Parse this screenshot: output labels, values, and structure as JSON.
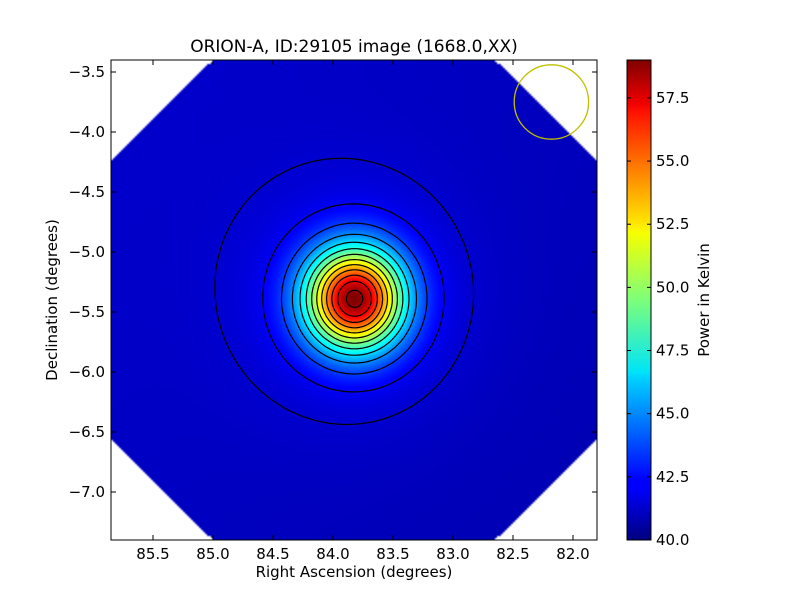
{
  "chart_data": {
    "type": "heatmap",
    "title": "ORION-A, ID:29105 image (1668.0,XX)",
    "xlabel": "Right Ascension (degrees)",
    "ylabel": "Declination (degrees)",
    "xlim": [
      85.85,
      81.8
    ],
    "ylim": [
      -7.4,
      -3.4
    ],
    "x_ticks": [
      85.5,
      85.0,
      84.5,
      84.0,
      83.5,
      83.0,
      82.5,
      82.0
    ],
    "x_tick_labels": [
      "85.5",
      "85.0",
      "84.5",
      "84.0",
      "83.5",
      "83.0",
      "82.5",
      "82.0"
    ],
    "y_ticks": [
      -3.5,
      -4.0,
      -4.5,
      -5.0,
      -5.5,
      -6.0,
      -6.5,
      -7.0
    ],
    "y_tick_labels": [
      "−3.5",
      "−4.0",
      "−4.5",
      "−5.0",
      "−5.5",
      "−6.0",
      "−6.5",
      "−7.0"
    ],
    "colorbar": {
      "label": "Power in Kelvin",
      "range": [
        40.0,
        59.0
      ],
      "ticks": [
        40.0,
        42.5,
        45.0,
        47.5,
        50.0,
        52.5,
        55.0,
        57.5
      ],
      "tick_labels": [
        "40.0",
        "42.5",
        "45.0",
        "47.5",
        "50.0",
        "52.5",
        "55.0",
        "57.5"
      ],
      "colormap": "jet"
    },
    "source": {
      "ra": 83.82,
      "dec": -5.39,
      "peak_kelvin": 59.0,
      "background_kelvin": 41.2
    },
    "beam_circle": {
      "ra": 82.18,
      "dec": -3.75,
      "radius_deg": 0.31,
      "color": "#bfbf00"
    },
    "contour_levels": [
      41.5,
      42.2,
      43.5,
      45.0,
      46.5,
      48.0,
      49.5,
      51.0,
      52.5,
      54.0,
      55.5,
      57.0,
      58.5
    ],
    "contour_color": "#000000",
    "grid": false
  }
}
